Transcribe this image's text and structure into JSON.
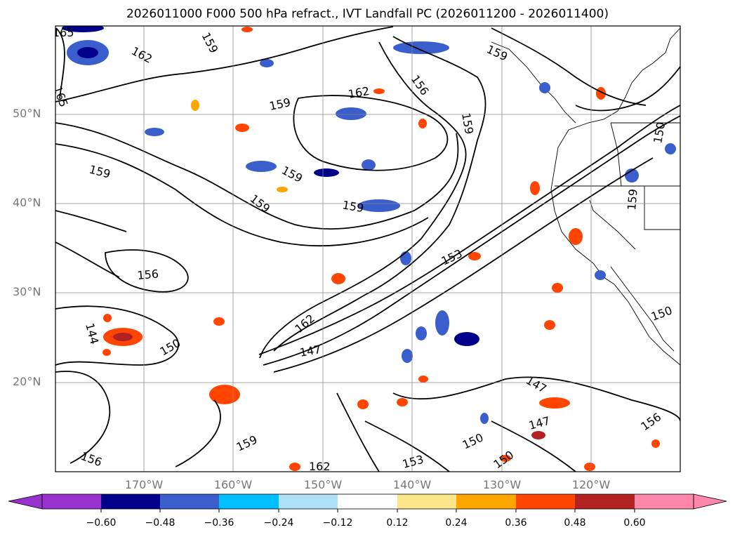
{
  "title": "2026011000 F000 500 hPa refract., IVT Landfall PC (2026011200 - 2026011400)",
  "lat_labels": [
    "50°N",
    "40°N",
    "30°N",
    "20°N"
  ],
  "lon_labels": [
    "170°W",
    "160°W",
    "150°W",
    "140°W",
    "130°W",
    "120°W"
  ],
  "contour_labels": [
    "165",
    "162",
    "159",
    "159",
    "162",
    "156",
    "159",
    "159",
    "165",
    "159",
    "159",
    "159",
    "159",
    "159",
    "150",
    "156",
    "153",
    "162",
    "147",
    "144",
    "150",
    "150",
    "147",
    "156",
    "159",
    "162",
    "150",
    "153",
    "150",
    "147",
    "156"
  ],
  "colorbar": {
    "ticks": [
      "−0.60",
      "−0.48",
      "−0.36",
      "−0.24",
      "−0.12",
      "0.12",
      "0.24",
      "0.36",
      "0.48",
      "0.60"
    ],
    "colors": [
      "#9932cc",
      "#00008b",
      "#3a5fcd",
      "#00bfff",
      "#aee0f7",
      "#ffffff",
      "#fde68a",
      "#ffa500",
      "#ff4500",
      "#b22222",
      "#ff88aa"
    ]
  }
}
